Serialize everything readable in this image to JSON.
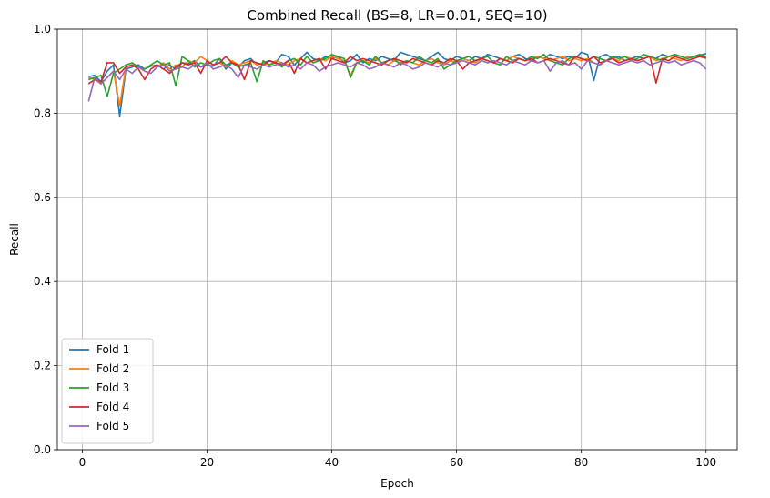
{
  "chart_data": {
    "type": "line",
    "title": "Combined Recall (BS=8, LR=0.01, SEQ=10)",
    "xlabel": "Epoch",
    "ylabel": "Recall",
    "xlim": [
      -4,
      105
    ],
    "ylim": [
      0.0,
      1.0
    ],
    "xticks": [
      0,
      20,
      40,
      60,
      80,
      100
    ],
    "yticks": [
      0.0,
      0.2,
      0.4,
      0.6,
      0.8,
      1.0
    ],
    "xtick_labels": [
      "0",
      "20",
      "40",
      "60",
      "80",
      "100"
    ],
    "ytick_labels": [
      "0.0",
      "0.2",
      "0.4",
      "0.6",
      "0.8",
      "1.0"
    ],
    "grid": true,
    "legend_position": "lower-left",
    "x": [
      1,
      2,
      3,
      4,
      5,
      6,
      7,
      8,
      9,
      10,
      11,
      12,
      13,
      14,
      15,
      16,
      17,
      18,
      19,
      20,
      21,
      22,
      23,
      24,
      25,
      26,
      27,
      28,
      29,
      30,
      31,
      32,
      33,
      34,
      35,
      36,
      37,
      38,
      39,
      40,
      41,
      42,
      43,
      44,
      45,
      46,
      47,
      48,
      49,
      50,
      51,
      52,
      53,
      54,
      55,
      56,
      57,
      58,
      59,
      60,
      61,
      62,
      63,
      64,
      65,
      66,
      67,
      68,
      69,
      70,
      71,
      72,
      73,
      74,
      75,
      76,
      77,
      78,
      79,
      80,
      81,
      82,
      83,
      84,
      85,
      86,
      87,
      88,
      89,
      90,
      91,
      92,
      93,
      94,
      95,
      96,
      97,
      98,
      99,
      100
    ],
    "series": [
      {
        "name": "Fold 1",
        "color": "#1f77b4",
        "values": [
          0.887,
          0.89,
          0.875,
          0.9,
          0.915,
          0.793,
          0.905,
          0.91,
          0.915,
          0.905,
          0.912,
          0.915,
          0.905,
          0.915,
          0.905,
          0.92,
          0.918,
          0.925,
          0.91,
          0.915,
          0.912,
          0.93,
          0.905,
          0.92,
          0.91,
          0.925,
          0.93,
          0.915,
          0.92,
          0.925,
          0.92,
          0.94,
          0.935,
          0.915,
          0.93,
          0.945,
          0.93,
          0.925,
          0.935,
          0.93,
          0.935,
          0.92,
          0.925,
          0.94,
          0.92,
          0.93,
          0.925,
          0.935,
          0.93,
          0.925,
          0.945,
          0.94,
          0.935,
          0.93,
          0.925,
          0.935,
          0.945,
          0.93,
          0.925,
          0.935,
          0.93,
          0.925,
          0.935,
          0.93,
          0.94,
          0.935,
          0.93,
          0.925,
          0.935,
          0.94,
          0.93,
          0.925,
          0.935,
          0.93,
          0.94,
          0.935,
          0.93,
          0.935,
          0.93,
          0.945,
          0.94,
          0.878,
          0.935,
          0.94,
          0.93,
          0.935,
          0.925,
          0.93,
          0.935,
          0.93,
          0.935,
          0.93,
          0.94,
          0.935,
          0.94,
          0.935,
          0.93,
          0.935,
          0.938,
          0.942
        ]
      },
      {
        "name": "Fold 2",
        "color": "#ff7f0e",
        "values": [
          0.885,
          0.88,
          0.87,
          0.885,
          0.9,
          0.818,
          0.91,
          0.915,
          0.91,
          0.905,
          0.915,
          0.91,
          0.92,
          0.905,
          0.915,
          0.91,
          0.925,
          0.92,
          0.935,
          0.925,
          0.915,
          0.92,
          0.91,
          0.925,
          0.915,
          0.92,
          0.925,
          0.915,
          0.92,
          0.915,
          0.925,
          0.92,
          0.915,
          0.925,
          0.93,
          0.92,
          0.925,
          0.93,
          0.925,
          0.935,
          0.93,
          0.925,
          0.89,
          0.92,
          0.925,
          0.92,
          0.93,
          0.92,
          0.915,
          0.925,
          0.92,
          0.925,
          0.92,
          0.915,
          0.925,
          0.93,
          0.92,
          0.915,
          0.925,
          0.92,
          0.93,
          0.925,
          0.92,
          0.93,
          0.925,
          0.92,
          0.93,
          0.925,
          0.935,
          0.93,
          0.925,
          0.93,
          0.935,
          0.93,
          0.925,
          0.93,
          0.935,
          0.925,
          0.93,
          0.925,
          0.93,
          0.92,
          0.915,
          0.925,
          0.93,
          0.925,
          0.935,
          0.93,
          0.925,
          0.93,
          0.935,
          0.925,
          0.93,
          0.935,
          0.93,
          0.925,
          0.935,
          0.93,
          0.935,
          0.93
        ]
      },
      {
        "name": "Fold 3",
        "color": "#2ca02c",
        "values": [
          0.88,
          0.885,
          0.89,
          0.84,
          0.895,
          0.905,
          0.915,
          0.92,
          0.91,
          0.905,
          0.915,
          0.925,
          0.915,
          0.92,
          0.865,
          0.935,
          0.925,
          0.91,
          0.92,
          0.915,
          0.925,
          0.93,
          0.915,
          0.92,
          0.91,
          0.915,
          0.92,
          0.875,
          0.925,
          0.915,
          0.92,
          0.91,
          0.925,
          0.93,
          0.915,
          0.935,
          0.92,
          0.925,
          0.93,
          0.94,
          0.935,
          0.93,
          0.885,
          0.92,
          0.925,
          0.915,
          0.935,
          0.92,
          0.925,
          0.93,
          0.915,
          0.925,
          0.92,
          0.935,
          0.925,
          0.92,
          0.93,
          0.905,
          0.915,
          0.925,
          0.93,
          0.935,
          0.925,
          0.93,
          0.935,
          0.92,
          0.915,
          0.935,
          0.925,
          0.93,
          0.925,
          0.935,
          0.93,
          0.94,
          0.925,
          0.92,
          0.915,
          0.93,
          0.935,
          0.93,
          0.925,
          0.935,
          0.93,
          0.925,
          0.935,
          0.93,
          0.935,
          0.925,
          0.93,
          0.94,
          0.935,
          0.93,
          0.925,
          0.935,
          0.94,
          0.935,
          0.93,
          0.935,
          0.94,
          0.935
        ]
      },
      {
        "name": "Fold 4",
        "color": "#d62728",
        "values": [
          0.87,
          0.88,
          0.875,
          0.92,
          0.92,
          0.895,
          0.91,
          0.915,
          0.905,
          0.88,
          0.905,
          0.915,
          0.905,
          0.895,
          0.91,
          0.92,
          0.915,
          0.92,
          0.895,
          0.925,
          0.915,
          0.92,
          0.935,
          0.92,
          0.915,
          0.88,
          0.925,
          0.92,
          0.915,
          0.925,
          0.92,
          0.915,
          0.925,
          0.895,
          0.93,
          0.92,
          0.925,
          0.93,
          0.905,
          0.93,
          0.925,
          0.92,
          0.935,
          0.925,
          0.93,
          0.925,
          0.92,
          0.915,
          0.925,
          0.93,
          0.925,
          0.92,
          0.93,
          0.925,
          0.92,
          0.915,
          0.925,
          0.92,
          0.93,
          0.925,
          0.905,
          0.92,
          0.925,
          0.93,
          0.925,
          0.92,
          0.93,
          0.925,
          0.92,
          0.93,
          0.925,
          0.93,
          0.92,
          0.925,
          0.93,
          0.925,
          0.92,
          0.915,
          0.935,
          0.93,
          0.925,
          0.935,
          0.92,
          0.925,
          0.93,
          0.92,
          0.925,
          0.93,
          0.925,
          0.93,
          0.935,
          0.872,
          0.93,
          0.925,
          0.935,
          0.93,
          0.925,
          0.93,
          0.935,
          0.932
        ]
      },
      {
        "name": "Fold 5",
        "color": "#9467bd",
        "values": [
          0.828,
          0.885,
          0.87,
          0.885,
          0.9,
          0.88,
          0.905,
          0.895,
          0.91,
          0.9,
          0.895,
          0.91,
          0.915,
          0.9,
          0.905,
          0.91,
          0.905,
          0.915,
          0.91,
          0.92,
          0.905,
          0.91,
          0.915,
          0.905,
          0.885,
          0.915,
          0.91,
          0.905,
          0.915,
          0.91,
          0.915,
          0.92,
          0.91,
          0.915,
          0.905,
          0.92,
          0.915,
          0.9,
          0.91,
          0.915,
          0.92,
          0.915,
          0.91,
          0.92,
          0.915,
          0.905,
          0.91,
          0.92,
          0.915,
          0.91,
          0.92,
          0.915,
          0.905,
          0.91,
          0.92,
          0.915,
          0.91,
          0.92,
          0.915,
          0.92,
          0.925,
          0.92,
          0.915,
          0.925,
          0.92,
          0.925,
          0.92,
          0.915,
          0.925,
          0.92,
          0.915,
          0.925,
          0.92,
          0.925,
          0.9,
          0.92,
          0.925,
          0.915,
          0.92,
          0.905,
          0.925,
          0.92,
          0.915,
          0.925,
          0.92,
          0.915,
          0.92,
          0.925,
          0.92,
          0.925,
          0.915,
          0.92,
          0.925,
          0.92,
          0.925,
          0.915,
          0.92,
          0.925,
          0.92,
          0.905
        ]
      }
    ]
  }
}
